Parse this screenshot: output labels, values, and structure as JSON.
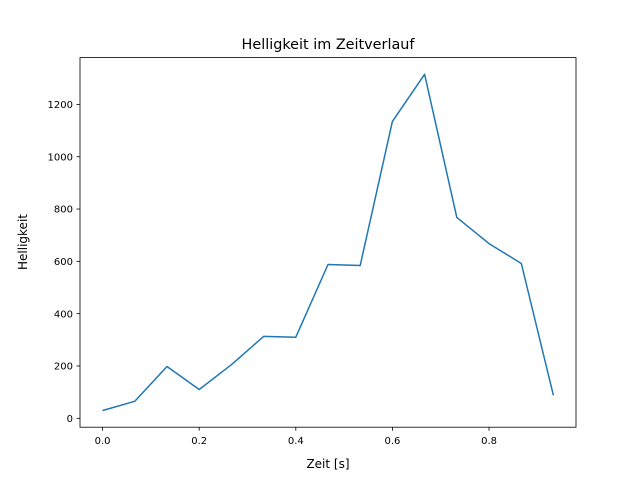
{
  "chart_data": {
    "type": "line",
    "title": "Helligkeit im Zeitverlauf",
    "xlabel": "Zeit [s]",
    "ylabel": "Helligkeit",
    "xlim": [
      -0.0467,
      0.98
    ],
    "ylim": [
      -34,
      1379
    ],
    "xticks": [
      0.0,
      0.2,
      0.4,
      0.6,
      0.8
    ],
    "xtick_labels": [
      "0.0",
      "0.2",
      "0.4",
      "0.6",
      "0.8"
    ],
    "yticks": [
      0,
      200,
      400,
      600,
      800,
      1000,
      1200
    ],
    "ytick_labels": [
      "0",
      "200",
      "400",
      "600",
      "800",
      "1000",
      "1200"
    ],
    "grid": false,
    "series": [
      {
        "name": "Helligkeit",
        "color": "#1f77b4",
        "x": [
          0.0,
          0.0667,
          0.1333,
          0.2,
          0.2667,
          0.3333,
          0.4,
          0.4667,
          0.5333,
          0.6,
          0.6667,
          0.7333,
          0.8,
          0.8667,
          0.9333
        ],
        "y": [
          30,
          65,
          198,
          110,
          205,
          313,
          310,
          588,
          584,
          1135,
          1315,
          768,
          668,
          592,
          88
        ]
      }
    ]
  }
}
